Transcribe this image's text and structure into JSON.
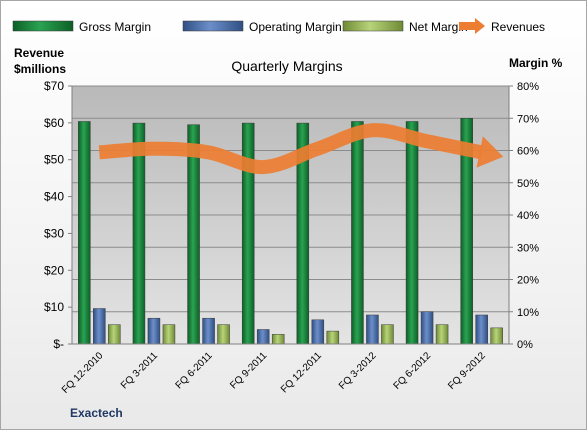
{
  "chart_data": {
    "type": "bar",
    "title": "Quarterly Margins",
    "company_label": "Exactech",
    "y_left": {
      "label_line1": "Revenue",
      "label_line2": "$millions",
      "min": 0,
      "max": 70,
      "step": 10,
      "ticks": [
        "$-",
        "$10",
        "$20",
        "$30",
        "$40",
        "$50",
        "$60",
        "$70"
      ]
    },
    "y_right": {
      "label": "Margin %",
      "min": 0,
      "max": 80,
      "step": 10,
      "ticks": [
        "0%",
        "10%",
        "20%",
        "30%",
        "40%",
        "50%",
        "60%",
        "70%",
        "80%"
      ]
    },
    "categories": [
      "FQ 12-2010",
      "FQ 3-2011",
      "FQ 6-2011",
      "FQ 9-2011",
      "FQ 12-2011",
      "FQ 3-2012",
      "FQ 6-2012",
      "FQ 9-2012"
    ],
    "series": [
      {
        "name": "Gross Margin",
        "kind": "bar",
        "axis": "right",
        "color": "#1e8a3e",
        "values": [
          69.0,
          68.5,
          68.0,
          68.5,
          68.5,
          69.0,
          69.0,
          70.0
        ]
      },
      {
        "name": "Operating Margin",
        "kind": "bar",
        "axis": "right",
        "color": "#4a6fad",
        "values": [
          11.0,
          8.0,
          8.0,
          4.5,
          7.5,
          9.0,
          10.0,
          9.0
        ]
      },
      {
        "name": "Net Margin",
        "kind": "bar",
        "axis": "right",
        "color": "#9bbb59",
        "values": [
          6.0,
          6.0,
          6.0,
          3.0,
          4.0,
          6.0,
          6.0,
          5.0
        ]
      },
      {
        "name": "Revenues",
        "kind": "line",
        "axis": "left",
        "color": "#ed7d31",
        "values": [
          52,
          53,
          52,
          48,
          53,
          58,
          55,
          52
        ]
      }
    ],
    "legend_position": "top",
    "grid": true
  }
}
